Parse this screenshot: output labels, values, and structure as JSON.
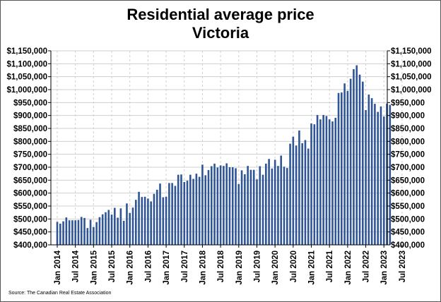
{
  "chart_data": {
    "type": "bar",
    "title": "Residential average price",
    "subtitle": "Victoria",
    "xlabel": "",
    "ylabel": "",
    "ylim": [
      400000,
      1150000
    ],
    "grid": true,
    "legend": "none",
    "bar_color": "#2f5597",
    "y_ticks": [
      "$400,000",
      "$450,000",
      "$500,000",
      "$550,000",
      "$600,000",
      "$650,000",
      "$700,000",
      "$750,000",
      "$800,000",
      "$850,000",
      "$900,000",
      "$950,000",
      "$1,000,000",
      "$1,050,000",
      "$1,100,000",
      "$1,150,000"
    ],
    "x_ticks": [
      "Jan 2014",
      "Jul 2014",
      "Jan 2015",
      "Jul 2015",
      "Jan 2016",
      "Jul 2016",
      "Jan 2017",
      "Jul 2017",
      "Jan 2018",
      "Jul 2018",
      "Jan 2019",
      "Jul 2019",
      "Jan 2020",
      "Jul 2020",
      "Jan 2021",
      "Jul 2021",
      "Jan 2022",
      "Jul 2022",
      "Jan 2023",
      "Jul 2023"
    ],
    "x_start": "Jan 2014",
    "x_end": "Mar 2023",
    "frequency": "monthly",
    "values": [
      489000,
      482000,
      491000,
      506000,
      495000,
      495000,
      495000,
      496000,
      508000,
      504000,
      465000,
      497000,
      469000,
      488000,
      507000,
      518000,
      526000,
      535000,
      517000,
      543000,
      505000,
      541000,
      493000,
      560000,
      523000,
      544000,
      574000,
      605000,
      585000,
      586000,
      579000,
      568000,
      597000,
      613000,
      637000,
      584000,
      586000,
      639000,
      639000,
      628000,
      671000,
      672000,
      643000,
      648000,
      671000,
      655000,
      675000,
      663000,
      710000,
      669000,
      689000,
      704000,
      714000,
      699000,
      707000,
      705000,
      715000,
      700000,
      700000,
      696000,
      635000,
      688000,
      673000,
      705000,
      690000,
      690000,
      653000,
      704000,
      671000,
      714000,
      732000,
      695000,
      729000,
      705000,
      745000,
      702000,
      697000,
      791000,
      818000,
      784000,
      842000,
      793000,
      805000,
      772000,
      869000,
      866000,
      902000,
      885000,
      902000,
      898000,
      885000,
      877000,
      891000,
      987000,
      989000,
      1024000,
      995000,
      1042000,
      1079000,
      1094000,
      1058000,
      1031000,
      921000,
      981000,
      967000,
      945000,
      914000,
      935000,
      896000,
      946000,
      941000
    ]
  },
  "source": "Source: The Canadian Real Estate Association"
}
